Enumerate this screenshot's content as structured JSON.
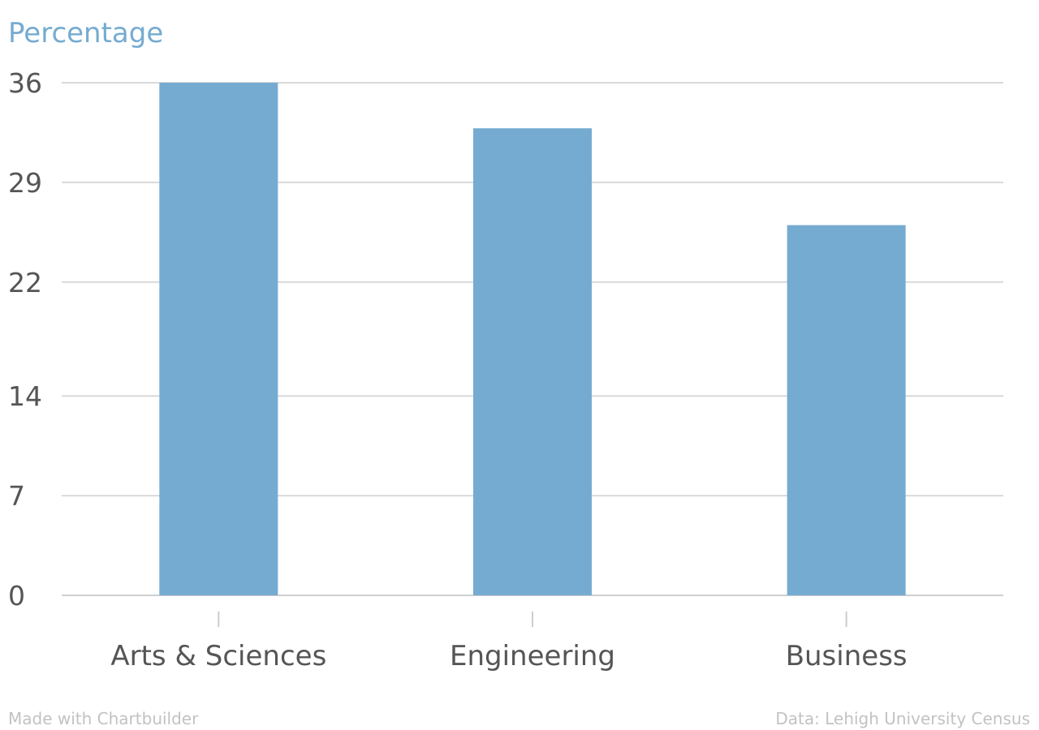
{
  "chart_data": {
    "type": "bar",
    "title": "",
    "ylabel": "Percentage",
    "xlabel": "",
    "categories": [
      "Arts & Sciences",
      "Engineering",
      "Business"
    ],
    "values": [
      36,
      32.8,
      26
    ],
    "ylim": [
      0,
      36
    ],
    "yticks": [
      "0",
      "7",
      "14",
      "22",
      "29",
      "36"
    ],
    "grid": true,
    "bar_color": "#75abd1"
  },
  "footer": {
    "credit": "Made with Chartbuilder",
    "source": "Data: Lehigh University Census"
  }
}
